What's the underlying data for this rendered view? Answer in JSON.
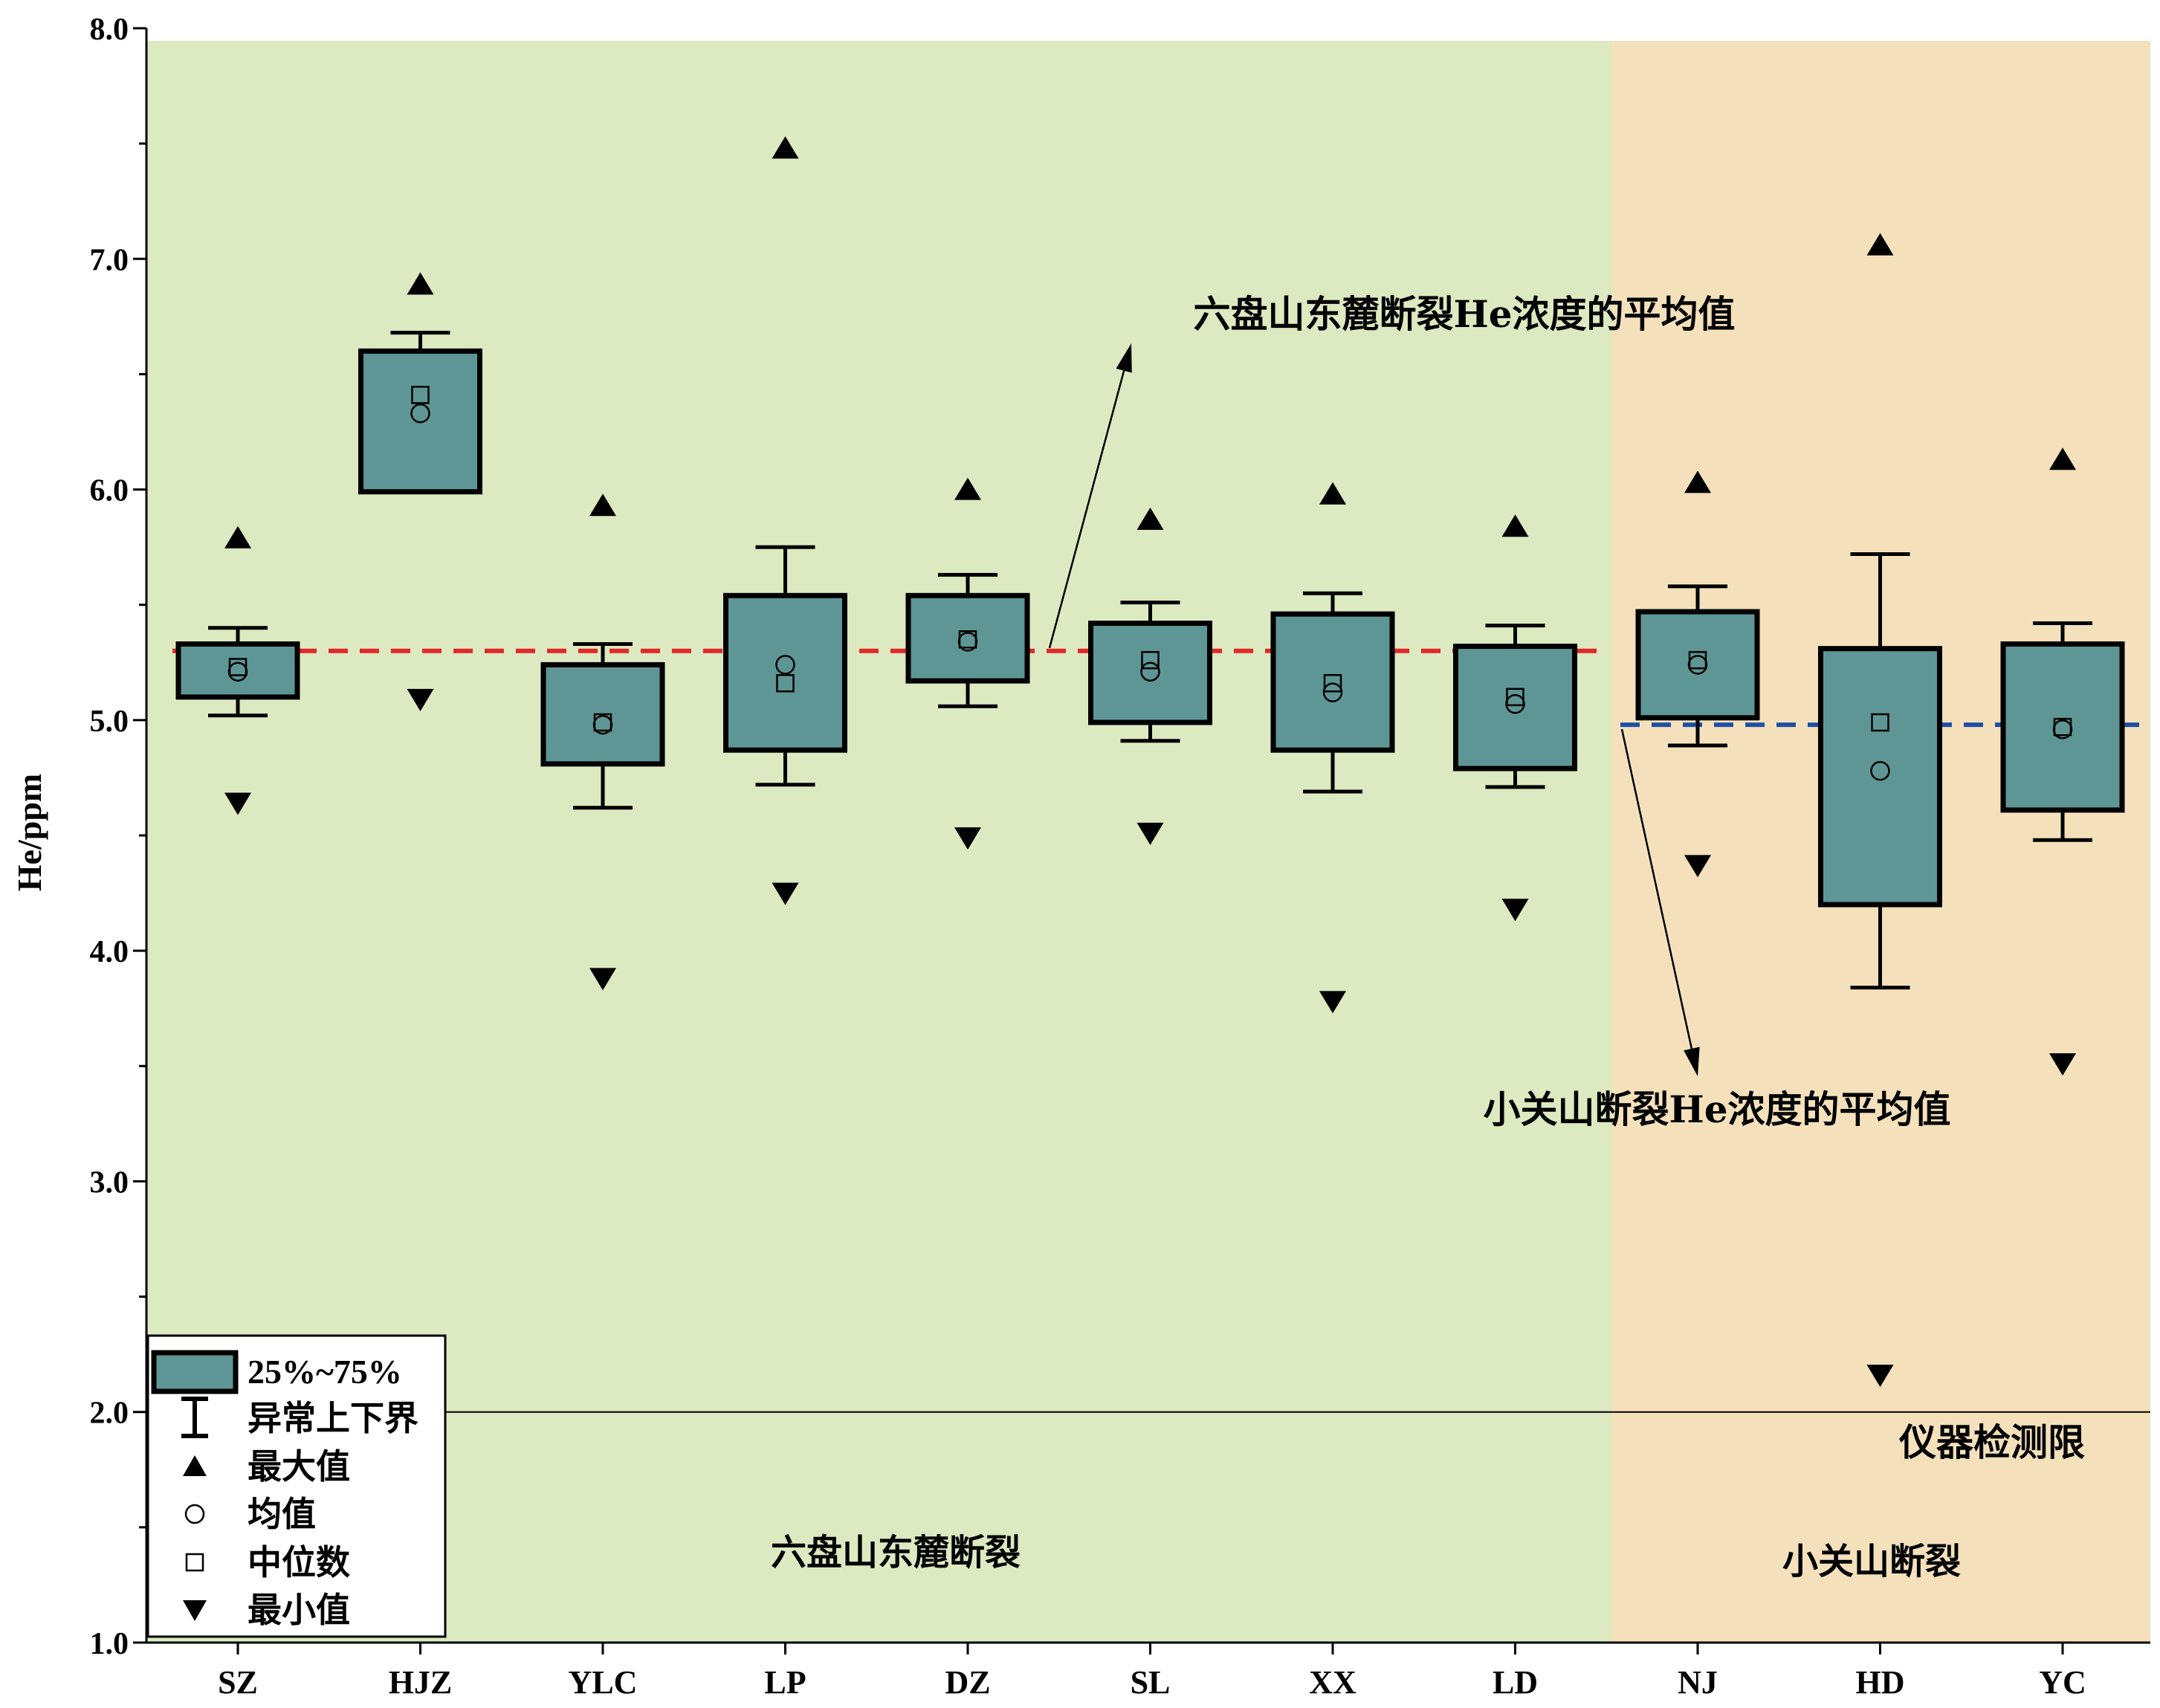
{
  "chart_data": {
    "type": "box",
    "ylabel": "He/ppm",
    "ylim": [
      1.0,
      8.0
    ],
    "yticks": [
      "1.0",
      "2.0",
      "3.0",
      "4.0",
      "5.0",
      "6.0",
      "7.0",
      "8.0"
    ],
    "categories": [
      "SZ",
      "HJZ",
      "YLC",
      "LP",
      "DZ",
      "SL",
      "XX",
      "LD",
      "NJ",
      "HD",
      "YC"
    ],
    "boxes": [
      {
        "q1": 5.1,
        "q3": 5.33,
        "lower": 5.02,
        "upper": 5.4,
        "mean": 5.21,
        "median": 5.23,
        "max": 5.79,
        "min": 4.64
      },
      {
        "q1": 5.99,
        "q3": 6.6,
        "lower": 5.99,
        "upper": 6.68,
        "mean": 6.33,
        "median": 6.41,
        "max": 6.89,
        "min": 5.09
      },
      {
        "q1": 4.81,
        "q3": 5.24,
        "lower": 4.62,
        "upper": 5.33,
        "mean": 4.98,
        "median": 4.99,
        "max": 5.93,
        "min": 3.88
      },
      {
        "q1": 4.87,
        "q3": 5.54,
        "lower": 4.72,
        "upper": 5.75,
        "mean": 5.24,
        "median": 5.16,
        "max": 7.48,
        "min": 4.25
      },
      {
        "q1": 5.17,
        "q3": 5.54,
        "lower": 5.06,
        "upper": 5.63,
        "mean": 5.34,
        "median": 5.35,
        "max": 6.0,
        "min": 4.49
      },
      {
        "q1": 4.99,
        "q3": 5.42,
        "lower": 4.91,
        "upper": 5.51,
        "mean": 5.21,
        "median": 5.26,
        "max": 5.87,
        "min": 4.51
      },
      {
        "q1": 4.87,
        "q3": 5.46,
        "lower": 4.69,
        "upper": 5.55,
        "mean": 5.12,
        "median": 5.16,
        "max": 5.98,
        "min": 3.78
      },
      {
        "q1": 4.79,
        "q3": 5.32,
        "lower": 4.71,
        "upper": 5.41,
        "mean": 5.07,
        "median": 5.1,
        "max": 5.84,
        "min": 4.18
      },
      {
        "q1": 5.01,
        "q3": 5.47,
        "lower": 4.89,
        "upper": 5.58,
        "mean": 5.24,
        "median": 5.26,
        "max": 6.03,
        "min": 4.37
      },
      {
        "q1": 4.2,
        "q3": 5.31,
        "lower": 3.84,
        "upper": 5.72,
        "mean": 4.78,
        "median": 4.99,
        "max": 7.06,
        "min": 2.16
      },
      {
        "q1": 4.61,
        "q3": 5.33,
        "lower": 4.48,
        "upper": 5.42,
        "mean": 4.96,
        "median": 4.97,
        "max": 6.13,
        "min": 3.51
      }
    ],
    "regions": [
      {
        "label": "六盘山东麓断裂",
        "from": "SZ",
        "to": "LD",
        "color": "#dde9c0"
      },
      {
        "label": "小关山断裂",
        "from": "NJ",
        "to": "YC",
        "color": "#f4e1bc"
      }
    ],
    "reference_lines": [
      {
        "value": 5.3,
        "label": "六盘山东麓断裂He浓度的平均值",
        "color": "#e0282b",
        "style": "dashed",
        "span": "SZ-LD"
      },
      {
        "value": 4.98,
        "label": "小关山断裂He浓度的平均值",
        "color": "#1f4fa5",
        "style": "dashed",
        "span": "NJ-YC"
      },
      {
        "value": 2.0,
        "label": "仪器检测限",
        "color": "#000000",
        "style": "solid",
        "span": "all"
      }
    ],
    "legend": {
      "position": "bottom-left",
      "items": [
        {
          "symbol": "box",
          "label": "25%~75%"
        },
        {
          "symbol": "whisker",
          "label": "异常上下界"
        },
        {
          "symbol": "triangle-up",
          "label": "最大值"
        },
        {
          "symbol": "circle",
          "label": "均值"
        },
        {
          "symbol": "square",
          "label": "中位数"
        },
        {
          "symbol": "triangle-down",
          "label": "最小值"
        }
      ]
    },
    "colors": {
      "box_fill": "#5e9695",
      "box_stroke": "#000000"
    },
    "grid": false
  }
}
